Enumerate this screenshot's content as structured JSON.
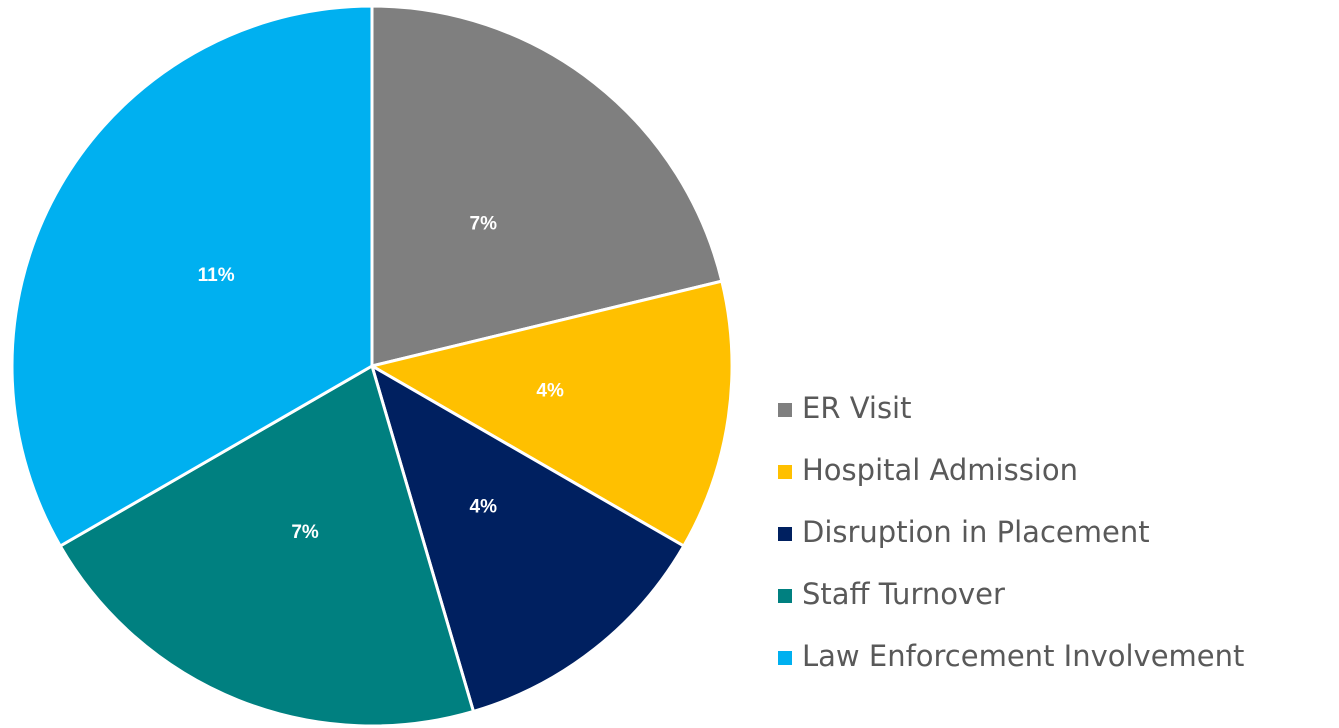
{
  "chart_data": {
    "type": "pie",
    "categories": [
      "ER Visit",
      "Hospital Admission",
      "Disruption in Placement",
      "Staff Turnover",
      "Law Enforcement Involvement"
    ],
    "values": [
      7,
      4,
      4,
      7,
      11
    ],
    "value_labels": [
      "7%",
      "4%",
      "4%",
      "7%",
      "11%"
    ],
    "colors": [
      "#7f7f7f",
      "#ffc000",
      "#002060",
      "#008080",
      "#00b0f0"
    ],
    "legend": "right"
  }
}
